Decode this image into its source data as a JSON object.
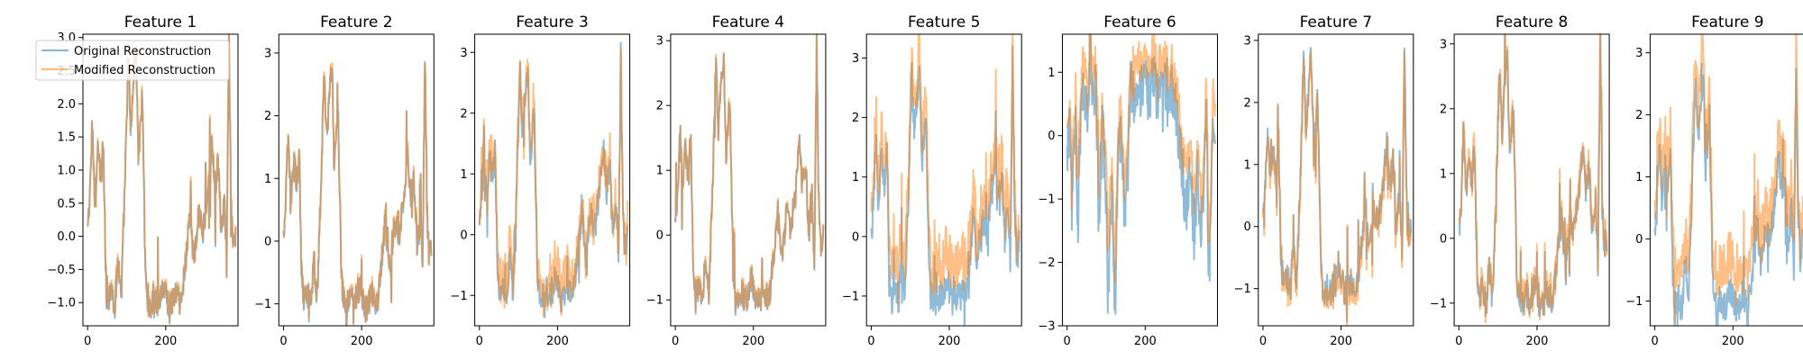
{
  "figure": {
    "legend": {
      "placement": "upper-left of first panel",
      "entries": [
        "Original Reconstruction",
        "Modified Reconstruction"
      ]
    }
  },
  "chart_data": [
    {
      "type": "line",
      "title": "Feature 1",
      "ylim": [
        -1.35,
        3.05
      ],
      "xlim": [
        -12,
        385
      ],
      "yticks": [
        -1.0,
        -0.5,
        0.0,
        0.5,
        1.0,
        1.5,
        2.0,
        2.5,
        3.0
      ],
      "ytick_labels": [
        "−1.0",
        "−0.5",
        "0.0",
        "0.5",
        "1.0",
        "1.5",
        "2.0",
        "2.5",
        "3.0"
      ],
      "xticks": [
        0,
        200
      ],
      "xtick_labels": [
        "0",
        "200"
      ],
      "profile": "base",
      "series": [
        {
          "name": "Original Reconstruction",
          "color": "#1f77b4",
          "offset": 0,
          "amp": 0
        },
        {
          "name": "Modified Reconstruction",
          "color": "#ff7f0e",
          "offset": 0.02,
          "amp": 0.05
        }
      ]
    },
    {
      "type": "line",
      "title": "Feature 2",
      "ylim": [
        -1.35,
        3.3
      ],
      "xlim": [
        -12,
        385
      ],
      "yticks": [
        -1,
        0,
        1,
        2,
        3
      ],
      "ytick_labels": [
        "−1",
        "0",
        "1",
        "2",
        "3"
      ],
      "xticks": [
        0,
        200
      ],
      "xtick_labels": [
        "0",
        "200"
      ],
      "profile": "base",
      "series": [
        {
          "name": "Original Reconstruction",
          "color": "#1f77b4",
          "offset": 0,
          "amp": 0
        },
        {
          "name": "Modified Reconstruction",
          "color": "#ff7f0e",
          "offset": 0.03,
          "amp": 0.06
        }
      ]
    },
    {
      "type": "line",
      "title": "Feature 3",
      "ylim": [
        -1.5,
        3.3
      ],
      "xlim": [
        -12,
        385
      ],
      "yticks": [
        -1,
        0,
        1,
        2,
        3
      ],
      "ytick_labels": [
        "−1",
        "0",
        "1",
        "2",
        "3"
      ],
      "xticks": [
        0,
        200
      ],
      "xtick_labels": [
        "0",
        "200"
      ],
      "profile": "base",
      "series": [
        {
          "name": "Original Reconstruction",
          "color": "#1f77b4",
          "offset": 0,
          "amp": 0.05
        },
        {
          "name": "Modified Reconstruction",
          "color": "#ff7f0e",
          "offset": 0.12,
          "amp": 0.35
        }
      ]
    },
    {
      "type": "line",
      "title": "Feature 4",
      "ylim": [
        -1.4,
        3.1
      ],
      "xlim": [
        -12,
        385
      ],
      "yticks": [
        -1,
        0,
        1,
        2,
        3
      ],
      "ytick_labels": [
        "−1",
        "0",
        "1",
        "2",
        "3"
      ],
      "xticks": [
        0,
        200
      ],
      "xtick_labels": [
        "0",
        "200"
      ],
      "profile": "base",
      "series": [
        {
          "name": "Original Reconstruction",
          "color": "#1f77b4",
          "offset": 0,
          "amp": 0
        },
        {
          "name": "Modified Reconstruction",
          "color": "#ff7f0e",
          "offset": 0.02,
          "amp": 0.04
        }
      ]
    },
    {
      "type": "line",
      "title": "Feature 5",
      "ylim": [
        -1.5,
        3.4
      ],
      "xlim": [
        -12,
        385
      ],
      "yticks": [
        -1,
        0,
        1,
        2,
        3
      ],
      "ytick_labels": [
        "−1",
        "0",
        "1",
        "2",
        "3"
      ],
      "xticks": [
        0,
        200
      ],
      "xtick_labels": [
        "0",
        "200"
      ],
      "profile": "base",
      "series": [
        {
          "name": "Original Reconstruction",
          "color": "#1f77b4",
          "offset": -0.05,
          "amp": 0.1
        },
        {
          "name": "Modified Reconstruction",
          "color": "#ff7f0e",
          "offset": 0.3,
          "amp": 0.4
        }
      ]
    },
    {
      "type": "line",
      "title": "Feature 6",
      "ylim": [
        -3.0,
        1.6
      ],
      "xlim": [
        -12,
        385
      ],
      "yticks": [
        -3,
        -2,
        -1,
        0,
        1
      ],
      "ytick_labels": [
        "−3",
        "−2",
        "−1",
        "0",
        "1"
      ],
      "xticks": [
        0,
        200
      ],
      "xtick_labels": [
        "0",
        "200"
      ],
      "profile": "plateau",
      "series": [
        {
          "name": "Original Reconstruction",
          "color": "#1f77b4",
          "offset": -0.15,
          "amp": 0.35
        },
        {
          "name": "Modified Reconstruction",
          "color": "#ff7f0e",
          "offset": 0.2,
          "amp": 0.25
        }
      ]
    },
    {
      "type": "line",
      "title": "Feature 7",
      "ylim": [
        -1.6,
        3.1
      ],
      "xlim": [
        -12,
        385
      ],
      "yticks": [
        -1,
        0,
        1,
        2,
        3
      ],
      "ytick_labels": [
        "−1",
        "0",
        "1",
        "2",
        "3"
      ],
      "xticks": [
        0,
        200
      ],
      "xtick_labels": [
        "0",
        "200"
      ],
      "profile": "base",
      "series": [
        {
          "name": "Original Reconstruction",
          "color": "#1f77b4",
          "offset": 0,
          "amp": 0.05
        },
        {
          "name": "Modified Reconstruction",
          "color": "#ff7f0e",
          "offset": -0.08,
          "amp": 0.12
        }
      ]
    },
    {
      "type": "line",
      "title": "Feature 8",
      "ylim": [
        -1.35,
        3.15
      ],
      "xlim": [
        -12,
        385
      ],
      "yticks": [
        -1,
        0,
        1,
        2,
        3
      ],
      "ytick_labels": [
        "−1",
        "0",
        "1",
        "2",
        "3"
      ],
      "xticks": [
        0,
        200
      ],
      "xtick_labels": [
        "0",
        "200"
      ],
      "profile": "base",
      "series": [
        {
          "name": "Original Reconstruction",
          "color": "#1f77b4",
          "offset": 0,
          "amp": 0.03
        },
        {
          "name": "Modified Reconstruction",
          "color": "#ff7f0e",
          "offset": 0.06,
          "amp": 0.15
        }
      ]
    },
    {
      "type": "line",
      "title": "Feature 9",
      "ylim": [
        -1.4,
        3.3
      ],
      "xlim": [
        -12,
        385
      ],
      "yticks": [
        -1,
        0,
        1,
        2,
        3
      ],
      "ytick_labels": [
        "−1",
        "0",
        "1",
        "2",
        "3"
      ],
      "xticks": [
        0,
        200
      ],
      "xtick_labels": [
        "0",
        "200"
      ],
      "profile": "base",
      "series": [
        {
          "name": "Original Reconstruction",
          "color": "#1f77b4",
          "offset": -0.1,
          "amp": 0.1
        },
        {
          "name": "Modified Reconstruction",
          "color": "#ff7f0e",
          "offset": 0.3,
          "amp": 0.35
        }
      ]
    }
  ]
}
